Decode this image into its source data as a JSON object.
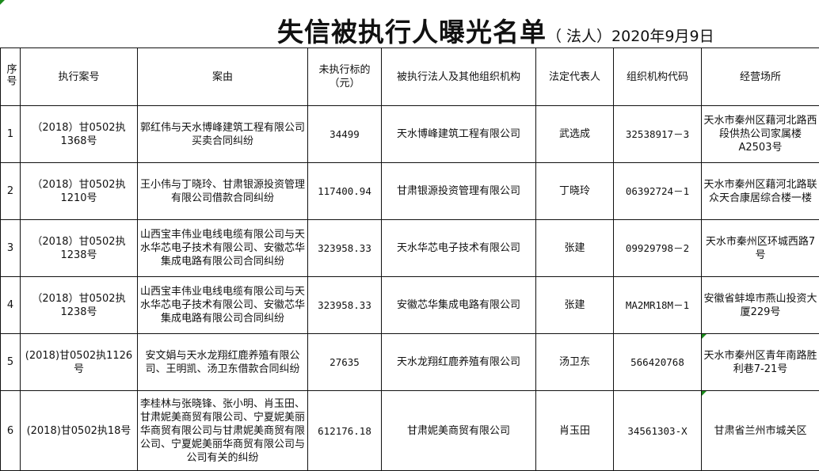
{
  "title": {
    "main": "失信被执行人曝光名单",
    "sub": "（ 法人）2020年9月9日"
  },
  "colors": {
    "border": "#111111",
    "comment_marker": "#1a8a1a"
  },
  "columns": [
    "序号",
    "执行案号",
    "案由",
    "未执行标的（元）",
    "被执行法人及其他组织机构",
    "法定代表人",
    "组织机构代码",
    "经营场所"
  ],
  "rows": [
    {
      "seq": "1",
      "case_no": "（2018）甘0502执1368号",
      "cause": "郭红伟与天水博峰建筑工程有限公司买卖合同纠纷",
      "amount": "34499",
      "entity": "天水博峰建筑工程有限公司",
      "rep": "武选成",
      "org_code": "32538917－3",
      "address": "天水市秦州区藉河北路西段供热公司家属楼A2503号"
    },
    {
      "seq": "2",
      "case_no": "（2018）甘0502执1210号",
      "cause": "王小伟与丁晓玲、甘肃银源投资管理有限公司借款合同纠纷",
      "amount": "117400.94",
      "entity": "甘肃银源投资管理有限公司",
      "rep": "丁晓玲",
      "org_code": "06392724－1",
      "address": "天水市秦州区藉河北路联众天合康居综合楼一楼"
    },
    {
      "seq": "3",
      "case_no": "（2018）甘0502执1238号",
      "cause": "山西宝丰伟业电线电缆有限公司与天水华芯电子技术有限公司、安徽芯华集成电路有限公司合同纠纷",
      "amount": "323958.33",
      "entity": "天水华芯电子技术有限公司",
      "rep": "张建",
      "org_code": "09929798－2",
      "address": "天水市秦州区环城西路7号"
    },
    {
      "seq": "4",
      "case_no": "（2018）甘0502执1238号",
      "cause": "山西宝丰伟业电线电缆有限公司与天水华芯电子技术有限公司、安徽芯华集成电路有限公司合同纠纷",
      "amount": "323958.33",
      "entity": "安徽芯华集成电路有限公司",
      "rep": "张建",
      "org_code": "MA2MR18M－1",
      "address": "安徽省蚌埠市燕山投资大厦229号"
    },
    {
      "seq": "5",
      "case_no": "(2018)甘0502执1126号",
      "cause": "安文娟与天水龙翔红鹿养殖有限公司、王明凯、汤卫东借款合同纠纷",
      "amount": "27635",
      "entity": "天水龙翔红鹿养殖有限公司",
      "rep": "汤卫东",
      "org_code": "566420768",
      "address": "天水市秦州区青年南路胜利巷7-21号"
    },
    {
      "seq": "6",
      "case_no": "(2018)甘0502执18号",
      "cause": "李桂林与张晓锋、张小明、肖玉田、甘肃妮美商贸有限公司、宁夏妮美丽华商贸有限公司与甘肃妮美商贸有限公司、宁夏妮美丽华商贸有限公司与公司有关的纠纷",
      "amount": "612176.18",
      "entity": "甘肃妮美商贸有限公司",
      "rep": "肖玉田",
      "org_code": "34561303-X",
      "address": "甘肃省兰州市城关区"
    }
  ]
}
